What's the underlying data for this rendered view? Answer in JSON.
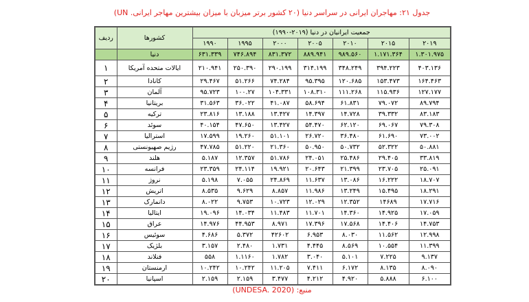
{
  "title": "جدول ۲۱: مهاجران ایرانی در سراسر دنیا (۲۰ کشور برتر میزبان با میزان بیشترین مهاجر ایرانی. UN)",
  "source": "منبع: (UNDESA. 2020)",
  "headers": {
    "rank": "ردیف",
    "country": "کشورها",
    "group": "جمعیت ایرانیان در دنیا (۲۰۱۹-۱۹۹۰)",
    "years": [
      "۱۹۹۰",
      "۱۹۹۵",
      "۲۰۰۰",
      "۲۰۰۵",
      "۲۰۱۰",
      "۲۰۱۵",
      "۲۰۱۹"
    ]
  },
  "world": {
    "label": "دنیا",
    "values": [
      "۶۳۱.۳۳۹",
      "۷۴۶.۸۹۴",
      "۸۳۱.۳۷۲",
      "۸۸۹.۹۴۱",
      "۹۸۹.۵۶۰",
      "۱.۱۷۱.۳۶۴",
      "۱.۳۰۱.۹۷۵"
    ]
  },
  "rows": [
    {
      "rank": "۱",
      "country": "ایالات متحده آمریکا",
      "values": [
        "۲۱۰.۹۴۱",
        "۲۵۰.۳۹۰",
        "۲۹۰.۱۹۹",
        "۳۱۴.۱۹۹",
        "۳۴۸.۲۴۹",
        "۳۹۴.۲۲۳",
        "۴۰۳.۱۳۶"
      ]
    },
    {
      "rank": "۲",
      "country": "کانادا",
      "values": [
        "۲۹.۴۶۷",
        "۵۱.۲۶۶",
        "۷۴.۲۸۴",
        "۹۵.۳۹۵",
        "۱۲۰.۶۸۵",
        "۱۵۳.۴۷۳",
        "۱۶۴.۴۶۳"
      ]
    },
    {
      "rank": "۳",
      "country": "آلمان",
      "values": [
        "۹۵.۷۲۳",
        "۱۰۰.۲۷",
        "۱۰۴.۳۳۱",
        "۱۰۸.۳۱۰",
        "۱۱۱.۲۶۸",
        "۱۱۵.۹۳۶",
        "۱۲۷.۱۷۷"
      ]
    },
    {
      "rank": "۴",
      "country": "بریتانیا",
      "values": [
        "۳۱.۵۶۳",
        "۳۶.۰۲۲",
        "۴۱.۰۸۷",
        "۵۸.۶۹۴",
        "۶۱.۸۳۱",
        "۷۹.۰۷۲",
        "۸۹.۷۹۴"
      ]
    },
    {
      "rank": "۵",
      "country": "ترکیه",
      "values": [
        "۲۳.۸۱۶",
        "۱۳.۱۸۸",
        "۱۳.۴۲۷",
        "۱۴.۳۹۷",
        "۱۴.۷۲۸",
        "۳۹.۳۳۲",
        "۸۳.۱۸۳"
      ]
    },
    {
      "rank": "۶",
      "country": "سوئد",
      "values": [
        "۴۰.۱۵۴",
        "۴۷.۶۵۰",
        "۱۳.۴۲۷",
        "۵۴.۴۷۰",
        "۶۲.۱۲۰",
        "۶۹.۰۶۷",
        "۷۹.۳۰۸"
      ]
    },
    {
      "rank": "۷",
      "country": "استرالیا",
      "values": [
        "۱۷.۵۹۹",
        "۱۹.۲۶۰",
        "۵۱.۱۰۱",
        "۲۶.۷۲۰",
        "۳۶.۴۸۰",
        "۶۱.۶۹۰",
        "۷۳.۰۰۲"
      ]
    },
    {
      "rank": "۸",
      "country": "رژیم صهیونستی",
      "values": [
        "۴۷.۷۸۵",
        "۵۱.۲۲۰",
        "۲۱.۳۶۰",
        "۵۰.۹۵۰",
        "۵۰.۷۳۲",
        "۵۲.۳۲۲",
        "۵۰.۸۸۱"
      ]
    },
    {
      "rank": "۹",
      "country": "هلند",
      "values": [
        "۵.۱۸۷",
        "۱۲.۳۵۷",
        "۵۱.۷۸۶",
        "۲۴.۰۵۱",
        "۲۵.۴۸۶",
        "۲۹.۴۰۵",
        "۳۳.۸۱۹"
      ]
    },
    {
      "rank": "۱۰",
      "country": "فرانسه",
      "values": [
        "۲۳.۳۵۹",
        "۲۴.۱۱۴",
        "۱۹.۹۲۱",
        "۲۰.۶۴۳",
        "۲۱.۳۹۹",
        "۲۳.۷۰۵",
        "۲۵.۰۹۱"
      ]
    },
    {
      "rank": "۱۱",
      "country": "نروژ",
      "values": [
        "۵.۱۹۸",
        "۷.۰۵۵",
        "۲۴.۸۶۹",
        "۱۱.۶۳۷",
        "۱۳.۰۸۶",
        "۱۶.۲۲۲",
        "۱۸.۷۰۷"
      ]
    },
    {
      "rank": "۱۲",
      "country": "اتریش",
      "values": [
        "۸.۵۳۵",
        "۹.۶۲۹",
        "۸.۸۵۷",
        "۱۱.۹۸۶",
        "۱۳.۲۴۹",
        "۱۵.۴۹۵",
        "۱۸.۲۹۱"
      ]
    },
    {
      "rank": "۱۳",
      "country": "دانمارک",
      "values": [
        "۸.۰۲۲",
        "۹.۷۵۳",
        "۱۰.۷۲۳",
        "۱۲.۰۲۹",
        "۱۲.۳۵۲",
        "۱۴۶۸۹",
        "۱۷.۷۱۶"
      ]
    },
    {
      "rank": "۱۴",
      "country": "ایتالیا",
      "values": [
        "۱۹.۰۹۶",
        "۱۴.۰۳۴",
        "۱۱.۴۸۳",
        "۱۱.۷۰۱",
        "۱۴.۳۶۰",
        "۱۴.۹۲۵",
        "۱۷.۰۵۹"
      ]
    },
    {
      "rank": "۱۵",
      "country": "عراق",
      "values": [
        "۱۴.۹۷۶",
        "۴۴.۹۵۳",
        "۸.۹۷۱",
        "۱۷.۳۹۶",
        "۱۷.۵۶۸",
        "۱۴.۴۰۶",
        "۱۴.۷۵۳"
      ]
    },
    {
      "rank": "۱۶",
      "country": "سوئیس",
      "values": [
        "۴.۶۸۶",
        "۵.۳۷۲",
        "۴۲۶۰۲",
        "۶.۹۵۳",
        "۸.۰۳۰",
        "۱۱.۵۶۲",
        "۱۲.۹۹۸"
      ]
    },
    {
      "rank": "۱۷",
      "country": "بلژیک",
      "values": [
        "۳.۱۵۷",
        "۲.۴۸۰",
        "۱.۷۳۱",
        "۴.۴۴۵",
        "۸.۵۶۹",
        "۱۰.۵۵۴",
        "۱۱.۳۹۹"
      ]
    },
    {
      "rank": "۱۸",
      "country": "فنلاند",
      "values": [
        "۵۵۸",
        "۱.۱۱۶۰",
        "۱.۷۸۲",
        "۳.۰۴۰",
        "۵.۱۰۱",
        "۷.۲۲۵",
        "۹.۱۳۷"
      ]
    },
    {
      "rank": "۱۹",
      "country": "ارمنستان",
      "values": [
        "۱۰.۲۴۲",
        "۱۰.۲۴۲",
        "۱۱.۲۰۵",
        "۷.۴۱۱",
        "۶.۱۷۲",
        "۸.۱۳۵",
        "۸.۰۹۰"
      ]
    },
    {
      "rank": "۲۰",
      "country": "اسپانیا",
      "values": [
        "۲.۱۵۹",
        "۲.۱۵۹",
        "۳.۴۷۷",
        "۴.۲۱۲",
        "۴.۹۲۰",
        "۵.۸۸۸",
        "۶.۱۰۰"
      ]
    }
  ]
}
